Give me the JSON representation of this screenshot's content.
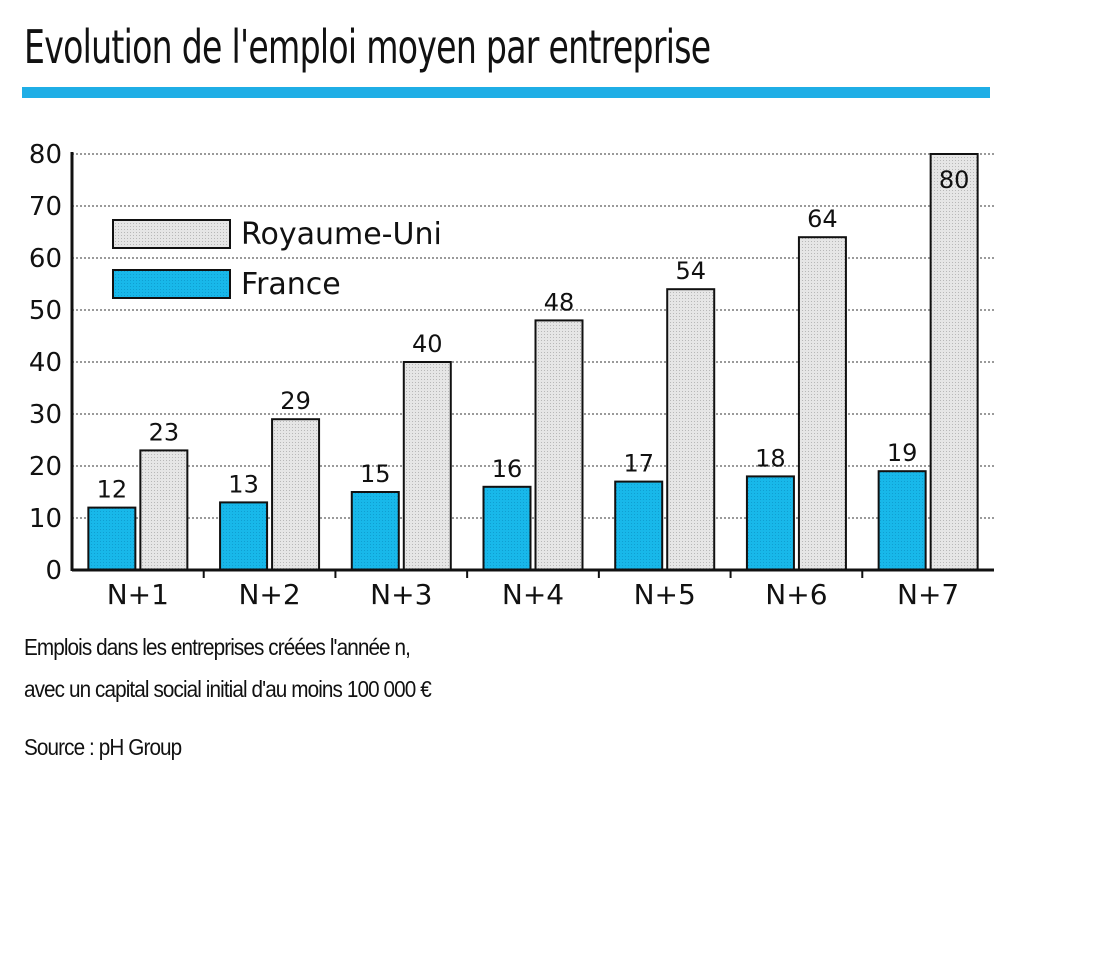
{
  "chart_data": {
    "type": "bar",
    "title": "Evolution de l'emploi moyen par entreprise",
    "categories": [
      "N+1",
      "N+2",
      "N+3",
      "N+4",
      "N+5",
      "N+6",
      "N+7"
    ],
    "series": [
      {
        "name": "France",
        "values": [
          12,
          13,
          15,
          16,
          17,
          18,
          19
        ],
        "color": "#15b4e8"
      },
      {
        "name": "Royaume-Uni",
        "values": [
          23,
          29,
          40,
          48,
          54,
          64,
          80
        ],
        "color": "#dcdcdc"
      }
    ],
    "yticks": [
      0,
      10,
      20,
      30,
      40,
      50,
      60,
      70,
      80
    ],
    "ylim": [
      0,
      80
    ],
    "xlabel": "",
    "ylabel": "",
    "legend": [
      "Royaume-Uni",
      "France"
    ],
    "grid": true,
    "accent_color": "#1faee6"
  },
  "captions": {
    "line1": "Emplois dans les entreprises créées l'année n,",
    "line2": "avec un capital social initial d'au moins 100 000 €",
    "source": "Source : pH Group"
  }
}
